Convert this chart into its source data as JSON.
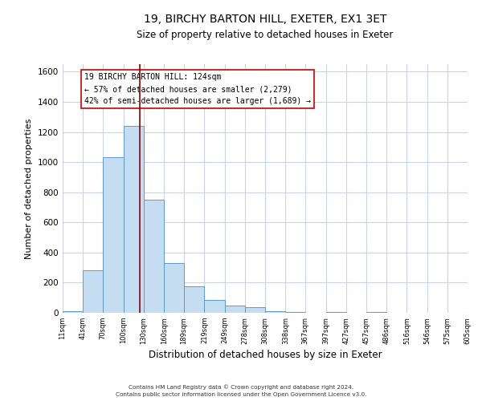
{
  "title": "19, BIRCHY BARTON HILL, EXETER, EX1 3ET",
  "subtitle": "Size of property relative to detached houses in Exeter",
  "xlabel": "Distribution of detached houses by size in Exeter",
  "ylabel": "Number of detached properties",
  "bar_edges": [
    11,
    41,
    70,
    100,
    130,
    160,
    189,
    219,
    249,
    278,
    308,
    338,
    367,
    397,
    427,
    457,
    486,
    516,
    546,
    575,
    605
  ],
  "bar_heights": [
    10,
    280,
    1035,
    1240,
    750,
    330,
    175,
    85,
    50,
    35,
    10,
    5,
    0,
    5,
    0,
    5,
    0,
    0,
    0,
    0
  ],
  "bar_color": "#c5ddf0",
  "bar_edge_color": "#5b9bd5",
  "property_line_x": 124,
  "property_line_color": "#8b0000",
  "annotation_title": "19 BIRCHY BARTON HILL: 124sqm",
  "annotation_line1": "← 57% of detached houses are smaller (2,279)",
  "annotation_line2": "42% of semi-detached houses are larger (1,689) →",
  "annotation_box_color": "#cc0000",
  "ylim": [
    0,
    1650
  ],
  "tick_labels": [
    "11sqm",
    "41sqm",
    "70sqm",
    "100sqm",
    "130sqm",
    "160sqm",
    "189sqm",
    "219sqm",
    "249sqm",
    "278sqm",
    "308sqm",
    "338sqm",
    "367sqm",
    "397sqm",
    "427sqm",
    "457sqm",
    "486sqm",
    "516sqm",
    "546sqm",
    "575sqm",
    "605sqm"
  ],
  "footer_line1": "Contains HM Land Registry data © Crown copyright and database right 2024.",
  "footer_line2": "Contains public sector information licensed under the Open Government Licence v3.0.",
  "bg_color": "#ffffff",
  "grid_color": "#c8d4e8"
}
